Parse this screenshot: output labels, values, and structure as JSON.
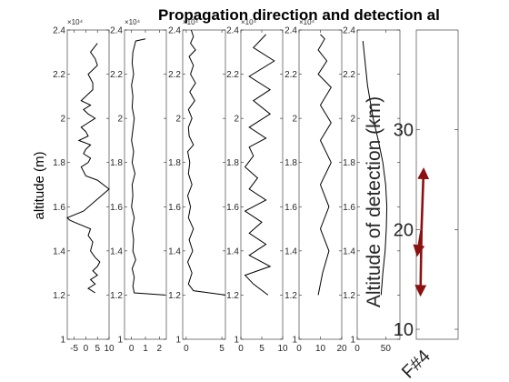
{
  "chart_data": {
    "type": "line",
    "title": "Propagation direction and detection al",
    "ylabel": "altitude (m)",
    "y_exponent_label": "×10⁴",
    "ylim": [
      1,
      2.4
    ],
    "yticks": [
      "1",
      "1.2",
      "1.4",
      "1.6",
      "1.8",
      "2",
      "2.2",
      "2.4"
    ],
    "panels": [
      {
        "id": "p1",
        "xlim": [
          -8,
          10
        ],
        "xticks": [
          -5,
          0,
          5,
          10
        ],
        "xtick_labels": [
          "-5",
          "0",
          "5",
          "10"
        ],
        "show_exponent": true,
        "series": [
          {
            "name": "profile-1",
            "x": [
              4,
              1,
              4,
              2,
              5,
              3,
              5,
              6,
              4,
              2,
              3,
              1,
              2,
              -5,
              -7,
              -8,
              -1,
              10,
              5,
              0,
              -1,
              -2,
              1,
              2,
              -1,
              0,
              2,
              -3,
              1,
              0,
              -2,
              1,
              4,
              1,
              -1,
              2,
              -2,
              0,
              3,
              3,
              1,
              5,
              4,
              2,
              5
            ],
            "y": [
              1.21,
              1.23,
              1.25,
              1.27,
              1.29,
              1.31,
              1.33,
              1.35,
              1.37,
              1.4,
              1.44,
              1.47,
              1.5,
              1.53,
              1.54,
              1.55,
              1.58,
              1.68,
              1.72,
              1.74,
              1.76,
              1.78,
              1.8,
              1.82,
              1.84,
              1.86,
              1.88,
              1.9,
              1.92,
              1.94,
              1.96,
              1.98,
              2.0,
              2.02,
              2.04,
              2.06,
              2.08,
              2.1,
              2.13,
              2.16,
              2.2,
              2.24,
              2.27,
              2.3,
              2.34
            ]
          }
        ]
      },
      {
        "id": "p2",
        "xlim": [
          -0.5,
          2.5
        ],
        "xticks": [
          0,
          1,
          2
        ],
        "xtick_labels": [
          "0",
          "1",
          "2"
        ],
        "show_exponent": true,
        "series": [
          {
            "name": "profile-2",
            "x": [
              2.4,
              0.2,
              0.1,
              0.2,
              0.05,
              0.3,
              0.1,
              0.15,
              0.05,
              0.2,
              0.0,
              0.1,
              0.05,
              0.25,
              0.05,
              0.15,
              0.0,
              0.1,
              0.2,
              0.05,
              0.1,
              0.0,
              0.15,
              0.05,
              0.1,
              0.3,
              1.0
            ],
            "y": [
              1.2,
              1.21,
              1.24,
              1.28,
              1.32,
              1.36,
              1.4,
              1.45,
              1.5,
              1.55,
              1.6,
              1.65,
              1.7,
              1.75,
              1.8,
              1.85,
              1.9,
              1.95,
              2.0,
              2.05,
              2.1,
              2.15,
              2.2,
              2.25,
              2.3,
              2.35,
              2.36
            ]
          }
        ]
      },
      {
        "id": "p3",
        "xlim": [
          -0.5,
          5.5
        ],
        "xticks": [
          0,
          5
        ],
        "xtick_labels": [
          "0",
          "5"
        ],
        "show_exponent": true,
        "series": [
          {
            "name": "profile-3",
            "x": [
              5.5,
              1.0,
              0.3,
              0.8,
              0.2,
              0.9,
              0.4,
              1.0,
              0.3,
              0.6,
              0.2,
              0.8,
              0.3,
              0.5,
              0.2,
              1.0,
              0.4,
              0.3,
              0.8,
              0.3,
              1.2,
              0.5,
              1.3,
              0.6,
              1.0,
              0.4,
              1.3,
              0.6,
              1.0,
              0.7
            ],
            "y": [
              1.2,
              1.22,
              1.25,
              1.3,
              1.35,
              1.4,
              1.45,
              1.5,
              1.55,
              1.6,
              1.65,
              1.7,
              1.75,
              1.8,
              1.85,
              1.88,
              1.92,
              1.96,
              2.0,
              2.04,
              2.08,
              2.12,
              2.16,
              2.2,
              2.24,
              2.28,
              2.31,
              2.34,
              2.37,
              2.4
            ]
          }
        ]
      },
      {
        "id": "p4",
        "xlim": [
          0,
          10
        ],
        "xticks": [
          0,
          5,
          10
        ],
        "xtick_labels": [
          "0",
          "5",
          "10"
        ],
        "show_exponent": true,
        "series": [
          {
            "name": "profile-4",
            "x": [
              6.5,
              3,
              1,
              7,
              2,
              6,
              2,
              5,
              1,
              6,
              2,
              4,
              1,
              3,
              2,
              6,
              2,
              7,
              3,
              7,
              2,
              8,
              3,
              6
            ],
            "y": [
              1.2,
              1.25,
              1.29,
              1.33,
              1.38,
              1.43,
              1.48,
              1.53,
              1.58,
              1.63,
              1.68,
              1.73,
              1.78,
              1.83,
              1.87,
              1.91,
              1.96,
              2.02,
              2.08,
              2.13,
              2.19,
              2.26,
              2.32,
              2.38
            ]
          }
        ]
      },
      {
        "id": "p5",
        "xlim": [
          0,
          20
        ],
        "xticks": [
          0,
          10,
          20
        ],
        "xtick_labels": [
          "0",
          "10",
          "20"
        ],
        "show_exponent": true,
        "series": [
          {
            "name": "profile-5",
            "x": [
              9,
              11,
              14,
              10,
              14,
              10,
              15,
              10,
              15,
              10,
              15,
              9,
              13,
              9,
              12,
              10
            ],
            "y": [
              1.2,
              1.3,
              1.4,
              1.5,
              1.6,
              1.7,
              1.8,
              1.9,
              1.98,
              2.06,
              2.14,
              2.2,
              2.26,
              2.31,
              2.36,
              2.38
            ]
          }
        ]
      },
      {
        "id": "p6",
        "xlim": [
          0,
          75
        ],
        "xticks": [
          0,
          50
        ],
        "xtick_labels": [
          "0",
          "50"
        ],
        "show_exponent": false,
        "series": [
          {
            "name": "profile-6",
            "x": [
              42,
              45,
              49,
              51,
              52,
              50,
              45,
              37,
              28,
              18,
              10
            ],
            "y": [
              1.2,
              1.3,
              1.4,
              1.5,
              1.6,
              1.7,
              1.8,
              1.9,
              2.0,
              2.15,
              2.35
            ]
          }
        ]
      }
    ],
    "detection_panel": {
      "ylabel": "Altitude of detection (km)",
      "ylim": [
        9,
        40
      ],
      "yticks": [
        10,
        20,
        30
      ],
      "ytick_labels": [
        "10",
        "20",
        "30"
      ],
      "xtick_label": "F#4",
      "arrows": [
        {
          "name": "arrow-up",
          "from": [
            0.5,
            20
          ],
          "to": [
            0.7,
            26
          ]
        },
        {
          "name": "arrow-down-left",
          "from": [
            0.5,
            20
          ],
          "to": [
            0.1,
            17.5
          ]
        },
        {
          "name": "arrow-down",
          "from": [
            0.5,
            20
          ],
          "to": [
            0.4,
            13.5
          ]
        }
      ],
      "arrow_color": "#8b1010"
    }
  }
}
